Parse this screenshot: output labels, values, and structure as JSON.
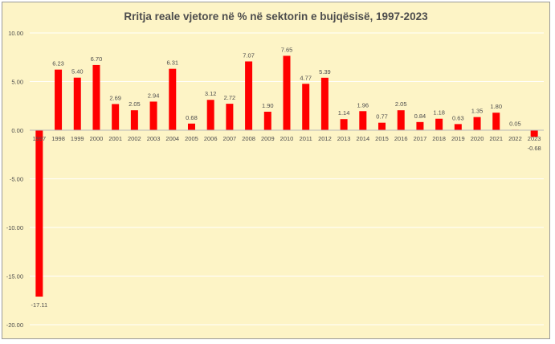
{
  "chart_data": {
    "type": "bar",
    "title": "Rritja reale vjetore në % në sektorin e bujqësisë, 1997-2023",
    "categories": [
      "1997",
      "1998",
      "1999",
      "2000",
      "2001",
      "2002",
      "2003",
      "2004",
      "2005",
      "2006",
      "2007",
      "2008",
      "2009",
      "2010",
      "2011",
      "2012",
      "2013",
      "2014",
      "2015",
      "2016",
      "2017",
      "2018",
      "2019",
      "2020",
      "2021",
      "2022",
      "2023"
    ],
    "values": [
      -17.11,
      6.23,
      5.4,
      6.7,
      2.69,
      2.05,
      2.94,
      6.31,
      0.68,
      3.12,
      2.72,
      7.07,
      1.9,
      7.65,
      4.77,
      5.39,
      1.14,
      1.96,
      0.77,
      2.05,
      0.84,
      1.18,
      0.63,
      1.35,
      1.8,
      0.05,
      -0.68
    ],
    "data_labels": [
      "-17.11",
      "6.23",
      "5.40",
      "6.70",
      "2.69",
      "2.05",
      "2.94",
      "6.31",
      "0.68",
      "3.12",
      "2.72",
      "7.07",
      "1.90",
      "7.65",
      "4.77",
      "5.39",
      "1.14",
      "1.96",
      "0.77",
      "2.05",
      "0.84",
      "1.18",
      "0.63",
      "1.35",
      "1.80",
      "0.05",
      "-0.68"
    ],
    "ylim": [
      -20,
      10
    ],
    "yticks": [
      10,
      5,
      0,
      -5,
      -10,
      -15,
      -20
    ],
    "ytick_labels": [
      "10.00",
      "5.00",
      "0.00",
      "-5.00",
      "-10.00",
      "-15.00",
      "-20.00"
    ],
    "xlabel": "",
    "ylabel": "",
    "grid": true,
    "legend": "none",
    "colors": {
      "bar": "#ff0000",
      "background": "#fdf4c6",
      "gridline": "#ffffff",
      "axis_line": "#b8b8b8",
      "text": "#4d4d4d",
      "border": "#9a9a9a"
    }
  }
}
